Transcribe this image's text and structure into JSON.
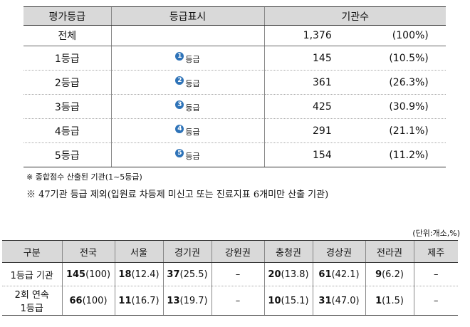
{
  "table1": {
    "headers": [
      "평가등급",
      "등급표시",
      "기관수"
    ],
    "total": {
      "label": "전체",
      "count": "1,376",
      "pct": "(100%)"
    },
    "rows": [
      {
        "grade": "1등급",
        "num": "1",
        "mark": "등급",
        "count": "145",
        "pct": "(10.5%)"
      },
      {
        "grade": "2등급",
        "num": "2",
        "mark": "등급",
        "count": "361",
        "pct": "(26.3%)"
      },
      {
        "grade": "3등급",
        "num": "3",
        "mark": "등급",
        "count": "425",
        "pct": "(30.9%)"
      },
      {
        "grade": "4등급",
        "num": "4",
        "mark": "등급",
        "count": "291",
        "pct": "(21.1%)"
      },
      {
        "grade": "5등급",
        "num": "5",
        "mark": "등급",
        "count": "154",
        "pct": "(11.2%)"
      }
    ]
  },
  "notes": {
    "note1": "※ 종합점수 산출된 기관(1~5등급)",
    "note2": "※ 47기관 등급 제외(입원료 차등제 미신고 또는 진료지표 6개미만 산출 기관)"
  },
  "unit": "(단위:개소,%)",
  "table2": {
    "headers": [
      "구분",
      "전국",
      "서울",
      "경기권",
      "강원권",
      "충청권",
      "경상권",
      "전라권",
      "제주"
    ],
    "rows": [
      {
        "label": "1등급 기관",
        "cells": [
          {
            "bold": "145",
            "rest": "(100)"
          },
          {
            "bold": "18",
            "rest": "(12.4)"
          },
          {
            "bold": "37",
            "rest": "(25.5)"
          },
          {
            "bold": "",
            "rest": "–"
          },
          {
            "bold": "20",
            "rest": "(13.8)"
          },
          {
            "bold": "61",
            "rest": "(42.1)"
          },
          {
            "bold": "9",
            "rest": "(6.2)"
          },
          {
            "bold": "",
            "rest": "–"
          }
        ]
      },
      {
        "label_line1": "2회 연속",
        "label_line2": "1등급",
        "cells": [
          {
            "bold": "66",
            "rest": "(100)"
          },
          {
            "bold": "11",
            "rest": "(16.7)"
          },
          {
            "bold": "13",
            "rest": "(19.7)"
          },
          {
            "bold": "",
            "rest": "–"
          },
          {
            "bold": "10",
            "rest": "(15.1)"
          },
          {
            "bold": "31",
            "rest": "(47.0)"
          },
          {
            "bold": "1",
            "rest": "(1.5)"
          },
          {
            "bold": "",
            "rest": "–"
          }
        ]
      }
    ]
  }
}
